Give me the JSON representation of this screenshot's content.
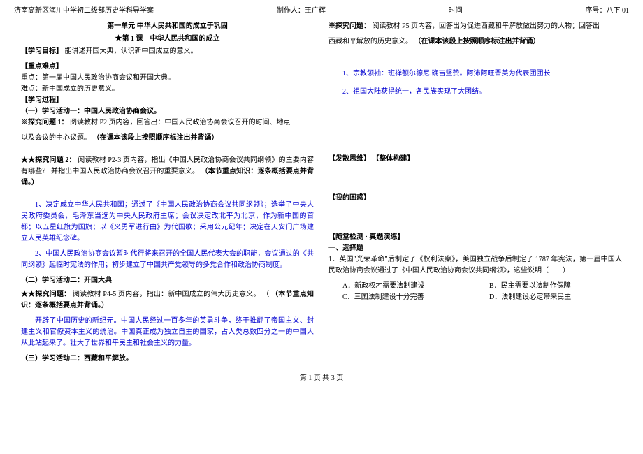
{
  "header": {
    "left": "济南高新区海川中学初二级部历史学科导学案",
    "author_label": "制作人：王广辉",
    "time_label": "时间",
    "serial": "序号：八下 01"
  },
  "left": {
    "unit_title": "第一单元 中华人民共和国的成立于巩固",
    "lesson_title": "★第 1 课　中华人民共和国的成立",
    "goal_h": "【学习目标】",
    "goal_t": "能讲述开国大典，认识新中国成立的意义。",
    "kd_h": "【重点难点】",
    "kd1": "重点：第一届中国人民政治协商会议和开国大典。",
    "kd2": "难点：新中国成立的历史意义。",
    "proc_h": "【学习过程】",
    "act1_h": "（一）学习活动一：中国人民政治协商会议。",
    "q1a": "※探究问题 1：",
    "q1b": "阅读教材 P2 页内容，回答出：中国人民政治协商会议召开的时间、地点",
    "q1c": "以及会议的中心议题。",
    "q1d": "（在课本该段上按照顺序标注出并背诵）",
    "q2a": "★★探究问题 2：",
    "q2b": "阅读教材 P2-3 页内容，指出《中国人民政治协商会议共同纲领》的主要内容有哪些？ 并指出中国人民政治协商会议召开的重要意义。",
    "q2c": "（本节重点知识：逐条概括要点并背诵。）",
    "ans1": "1、决定成立中华人民共和国；通过了《中国人民政治协商会议共同纲领》；选举了中央人民政府委员会，毛泽东当选为中央人民政府主席；会议决定改北平为北京，作为新中国的首都；以五星红旗为国旗；以《义勇军进行曲》为代国歌；采用公元纪年；决定在天安门广场建立人民英雄纪念碑。",
    "ans2": "2、中国人民政治协商会议暂时代行将来召开的全国人民代表大会的职能，会议通过的《共同纲领》起临时宪法的作用；初步建立了中国共产党领导的多党合作和政治协商制度。",
    "act2_h": "（二）学习活动二：开国大典",
    "q3a": "★★探究问题：",
    "q3b": "阅读教材 P4-5 页内容，指出：新中国成立的伟大历史意义。 （",
    "q3c": "（本节重点知识：逐条概括要点并背诵。）",
    "ans3": "开辟了中国历史的新纪元。中国人民经过一百多年的英勇斗争，终于推翻了帝国主义、封建主义和官僚资本主义的统治。中国真正成为独立自主的国家，占人类总数四分之一的中国人从此站起来了。壮大了世界和平民主和社会主义的力量。",
    "act3_h": "（三）学习活动二：西藏和平解放。"
  },
  "right": {
    "q_h": "※探究问题：",
    "q_t1": "阅读教材 P5 页内容，回答出为促进西藏和平解放做出努力的人物；回答出",
    "q_t2": "西藏和平解放的历史意义。",
    "q_t3": "（在课本该段上按照顺序标注出并背诵）",
    "a1": "1、宗教领袖：班禅额尔德尼.确吉坚赞。阿沛阿旺晋美为代表团团长",
    "a2": "2、祖国大陆获得统一，各民族实现了大团结。",
    "fs_h": "【发散思维】 【整体构建】",
    "kh_h": "【我的困惑】",
    "test_h": "【随堂检测 · 真题演练】",
    "mc_h": "一、选择题",
    "q1": "1．英国\"光荣革命\"后制定了《权利法案》，美国独立战争后制定了 1787 年宪法，第一届中国人民政治协商会议通过了《中国人民政治协商会议共同纲领》，这些说明（　　）",
    "optA": "A．新政权才需要法制建设",
    "optB": "B．民主需要以法制作保障",
    "optC": "C．三国法制建设十分完善",
    "optD": "D．法制建设必定带来民主"
  },
  "footer": "第 1 页 共 3 页",
  "colors": {
    "text": "#000000",
    "blue": "#0000d0",
    "bg": "#ffffff"
  },
  "typography": {
    "base_fontsize": 10,
    "family": "SimSun"
  }
}
